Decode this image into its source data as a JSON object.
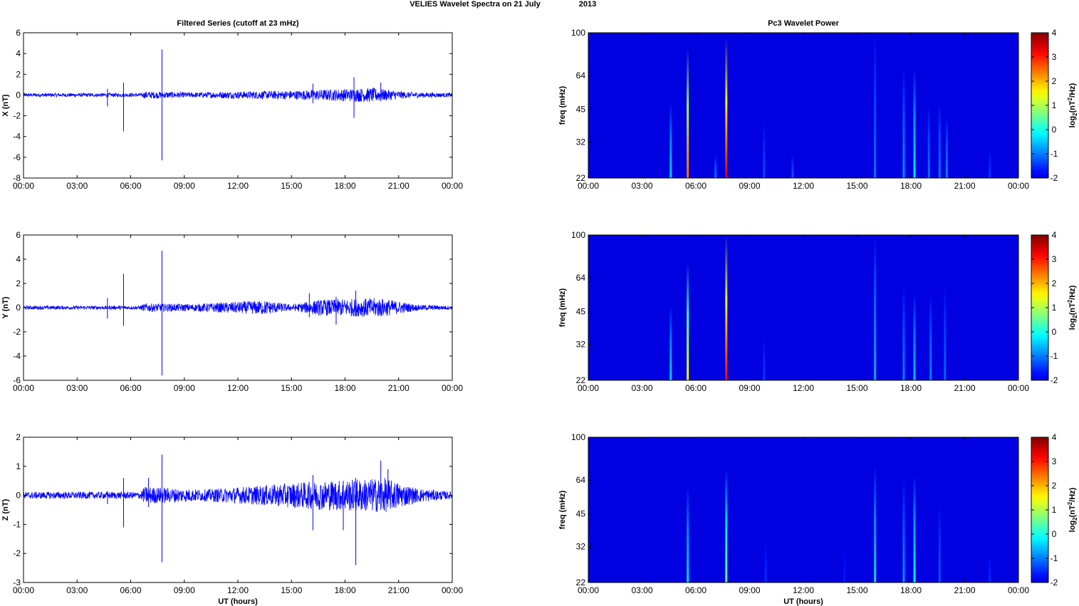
{
  "figure": {
    "title_text": "VELIES Wavelet Spectra on 21 July",
    "title_year": "2013"
  },
  "chart_data": [
    {
      "type": "line",
      "id": "x-series",
      "title": "Filtered Series (cutoff at 23 mHz)",
      "xlabel": "",
      "ylabel": "X (nT)",
      "x_tick_labels": [
        "00:00",
        "03:00",
        "06:00",
        "09:00",
        "12:00",
        "15:00",
        "18:00",
        "21:00",
        "00:00"
      ],
      "x_range_hours": [
        0,
        24
      ],
      "ylim": [
        -8,
        6
      ],
      "y_ticks": [
        -8,
        -6,
        -4,
        -2,
        0,
        2,
        4,
        6
      ],
      "line_color": "#0000ff",
      "noise_envelope": [
        {
          "t": 0,
          "amp": 0.18
        },
        {
          "t": 6.6,
          "amp": 0.18
        },
        {
          "t": 6.8,
          "amp": 0.35
        },
        {
          "t": 9.5,
          "amp": 0.25
        },
        {
          "t": 12.0,
          "amp": 0.35
        },
        {
          "t": 15.5,
          "amp": 0.45
        },
        {
          "t": 19.5,
          "amp": 0.7
        },
        {
          "t": 21.5,
          "amp": 0.3
        },
        {
          "t": 24,
          "amp": 0.18
        }
      ],
      "spikes": [
        {
          "t": 4.7,
          "max": 0.6,
          "min": -1.1
        },
        {
          "t": 5.6,
          "max": 1.2,
          "min": -3.5
        },
        {
          "t": 7.75,
          "max": 4.4,
          "min": -6.3
        },
        {
          "t": 16.2,
          "max": 1.1,
          "min": -0.8
        },
        {
          "t": 18.5,
          "max": 1.7,
          "min": -2.2
        },
        {
          "t": 20.0,
          "max": 1.2,
          "min": -0.6
        }
      ]
    },
    {
      "type": "heatmap",
      "id": "x-power",
      "title": "Pc3 Wavelet Power",
      "xlabel": "",
      "ylabel": "freq (mHz)",
      "x_tick_labels": [
        "00:00",
        "03:00",
        "06:00",
        "09:00",
        "12:00",
        "15:00",
        "18:00",
        "21:00",
        "00:00"
      ],
      "x_range_hours": [
        0,
        24
      ],
      "y_ticks": [
        22,
        32,
        45,
        64,
        100
      ],
      "y_range": [
        22,
        100
      ],
      "y_scale": "log",
      "colorbar_label": "log2(nT^2/Hz)",
      "colorbar_ticks": [
        -2,
        -1,
        0,
        1,
        2,
        3,
        4
      ],
      "colorbar_range": [
        -2,
        4
      ],
      "colormap": "jet",
      "background_value": -2,
      "streaks": [
        {
          "t": 4.6,
          "fmax": 48,
          "peak": -0.4
        },
        {
          "t": 5.55,
          "fmax": 85,
          "peak": 2.6
        },
        {
          "t": 7.1,
          "fmax": 28,
          "peak": -1.0
        },
        {
          "t": 7.7,
          "fmax": 95,
          "peak": 3.6
        },
        {
          "t": 9.8,
          "fmax": 40,
          "peak": -1.3
        },
        {
          "t": 11.4,
          "fmax": 28,
          "peak": -1.2
        },
        {
          "t": 16.0,
          "fmax": 100,
          "peak": -1.0
        },
        {
          "t": 17.6,
          "fmax": 70,
          "peak": -0.8
        },
        {
          "t": 18.2,
          "fmax": 70,
          "peak": -0.2
        },
        {
          "t": 19.0,
          "fmax": 48,
          "peak": -1.0
        },
        {
          "t": 19.6,
          "fmax": 50,
          "peak": -1.0
        },
        {
          "t": 20.0,
          "fmax": 42,
          "peak": -0.9
        },
        {
          "t": 22.4,
          "fmax": 30,
          "peak": -1.4
        }
      ]
    },
    {
      "type": "line",
      "id": "y-series",
      "title": "",
      "xlabel": "",
      "ylabel": "Y (nT)",
      "x_tick_labels": [
        "00:00",
        "03:00",
        "06:00",
        "09:00",
        "12:00",
        "15:00",
        "18:00",
        "21:00",
        "00:00"
      ],
      "x_range_hours": [
        0,
        24
      ],
      "ylim": [
        -6,
        6
      ],
      "y_ticks": [
        -6,
        -4,
        -2,
        0,
        2,
        4,
        6
      ],
      "line_color": "#0000ff",
      "noise_envelope": [
        {
          "t": 0,
          "amp": 0.15
        },
        {
          "t": 6.5,
          "amp": 0.15
        },
        {
          "t": 6.8,
          "amp": 0.35
        },
        {
          "t": 9.5,
          "amp": 0.3
        },
        {
          "t": 13.5,
          "amp": 0.6
        },
        {
          "t": 15.0,
          "amp": 0.25
        },
        {
          "t": 16.5,
          "amp": 0.65
        },
        {
          "t": 20.0,
          "amp": 0.8
        },
        {
          "t": 22.0,
          "amp": 0.25
        },
        {
          "t": 24,
          "amp": 0.15
        }
      ],
      "spikes": [
        {
          "t": 4.7,
          "max": 0.8,
          "min": -0.9
        },
        {
          "t": 5.6,
          "max": 2.8,
          "min": -1.5
        },
        {
          "t": 7.75,
          "max": 4.7,
          "min": -5.6
        },
        {
          "t": 16.0,
          "max": 1.2,
          "min": -0.8
        },
        {
          "t": 17.5,
          "max": 0.9,
          "min": -1.4
        },
        {
          "t": 18.6,
          "max": 1.4,
          "min": -0.7
        }
      ]
    },
    {
      "type": "heatmap",
      "id": "y-power",
      "title": "",
      "xlabel": "",
      "ylabel": "freq (mHz)",
      "x_tick_labels": [
        "00:00",
        "03:00",
        "06:00",
        "09:00",
        "12:00",
        "15:00",
        "18:00",
        "21:00",
        "00:00"
      ],
      "x_range_hours": [
        0,
        24
      ],
      "y_ticks": [
        22,
        32,
        45,
        64,
        100
      ],
      "y_range": [
        22,
        100
      ],
      "y_scale": "log",
      "colorbar_label": "log2(nT^2/Hz)",
      "colorbar_ticks": [
        -2,
        -1,
        0,
        1,
        2,
        3,
        4
      ],
      "colorbar_range": [
        -2,
        4
      ],
      "colormap": "jet",
      "background_value": -2,
      "streaks": [
        {
          "t": 4.6,
          "fmax": 48,
          "peak": -0.4
        },
        {
          "t": 5.55,
          "fmax": 75,
          "peak": 1.6
        },
        {
          "t": 7.7,
          "fmax": 100,
          "peak": 3.3
        },
        {
          "t": 9.8,
          "fmax": 35,
          "peak": -1.4
        },
        {
          "t": 16.0,
          "fmax": 100,
          "peak": -0.6
        },
        {
          "t": 17.6,
          "fmax": 60,
          "peak": -0.9
        },
        {
          "t": 18.2,
          "fmax": 55,
          "peak": -0.5
        },
        {
          "t": 19.1,
          "fmax": 55,
          "peak": -0.9
        },
        {
          "t": 19.9,
          "fmax": 60,
          "peak": -1.1
        }
      ]
    },
    {
      "type": "line",
      "id": "z-series",
      "title": "",
      "xlabel": "UT (hours)",
      "ylabel": "Z (nT)",
      "x_tick_labels": [
        "00:00",
        "03:00",
        "06:00",
        "09:00",
        "12:00",
        "15:00",
        "18:00",
        "21:00",
        "00:00"
      ],
      "x_range_hours": [
        0,
        24
      ],
      "ylim": [
        -3,
        2
      ],
      "y_ticks": [
        -3,
        -2,
        -1,
        0,
        1,
        2
      ],
      "line_color": "#0000ff",
      "noise_envelope": [
        {
          "t": 0,
          "amp": 0.12
        },
        {
          "t": 6.5,
          "amp": 0.12
        },
        {
          "t": 6.8,
          "amp": 0.3
        },
        {
          "t": 10.0,
          "amp": 0.2
        },
        {
          "t": 13.5,
          "amp": 0.35
        },
        {
          "t": 16.5,
          "amp": 0.5
        },
        {
          "t": 20.2,
          "amp": 0.6
        },
        {
          "t": 22.0,
          "amp": 0.25
        },
        {
          "t": 24,
          "amp": 0.12
        }
      ],
      "spikes": [
        {
          "t": 4.7,
          "max": 0.15,
          "min": -0.3
        },
        {
          "t": 5.6,
          "max": 0.6,
          "min": -1.1
        },
        {
          "t": 7.0,
          "max": 0.6,
          "min": -0.4
        },
        {
          "t": 7.75,
          "max": 1.4,
          "min": -2.3
        },
        {
          "t": 16.2,
          "max": 0.7,
          "min": -1.2
        },
        {
          "t": 17.9,
          "max": 0.5,
          "min": -1.2
        },
        {
          "t": 18.6,
          "max": 0.6,
          "min": -2.4
        },
        {
          "t": 20.0,
          "max": 1.2,
          "min": -0.5
        },
        {
          "t": 20.4,
          "max": 0.9,
          "min": -0.4
        }
      ]
    },
    {
      "type": "heatmap",
      "id": "z-power",
      "title": "",
      "xlabel": "UT (hours)",
      "ylabel": "freq (mHz)",
      "x_tick_labels": [
        "00:00",
        "03:00",
        "06:00",
        "09:00",
        "12:00",
        "15:00",
        "18:00",
        "21:00",
        "00:00"
      ],
      "x_range_hours": [
        0,
        24
      ],
      "y_ticks": [
        22,
        32,
        45,
        64,
        100
      ],
      "y_range": [
        22,
        100
      ],
      "y_scale": "log",
      "colorbar_label": "log2(nT^2/Hz)",
      "colorbar_ticks": [
        -2,
        -1,
        0,
        1,
        2,
        3,
        4
      ],
      "colorbar_range": [
        -2,
        4
      ],
      "colormap": "jet",
      "background_value": -2,
      "streaks": [
        {
          "t": 5.55,
          "fmax": 60,
          "peak": -0.3
        },
        {
          "t": 7.7,
          "fmax": 72,
          "peak": 0.6
        },
        {
          "t": 9.9,
          "fmax": 35,
          "peak": -1.5
        },
        {
          "t": 14.3,
          "fmax": 32,
          "peak": -1.6
        },
        {
          "t": 16.0,
          "fmax": 75,
          "peak": -0.3
        },
        {
          "t": 17.6,
          "fmax": 65,
          "peak": -0.8
        },
        {
          "t": 18.2,
          "fmax": 68,
          "peak": -0.1
        },
        {
          "t": 19.6,
          "fmax": 50,
          "peak": -1.2
        },
        {
          "t": 22.4,
          "fmax": 30,
          "peak": -1.5
        }
      ]
    }
  ]
}
